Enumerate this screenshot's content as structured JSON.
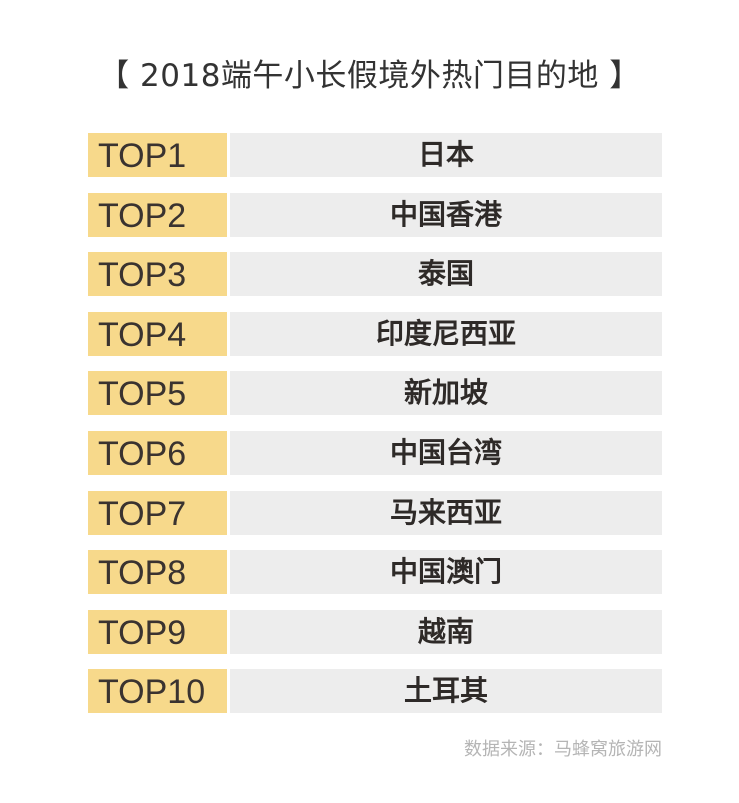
{
  "title": "【 2018端午小长假境外热门目的地 】",
  "rows": [
    {
      "rank": "TOP1",
      "destination": "日本"
    },
    {
      "rank": "TOP2",
      "destination": "中国香港"
    },
    {
      "rank": "TOP3",
      "destination": "泰国"
    },
    {
      "rank": "TOP4",
      "destination": "印度尼西亚"
    },
    {
      "rank": "TOP5",
      "destination": "新加坡"
    },
    {
      "rank": "TOP6",
      "destination": "中国台湾"
    },
    {
      "rank": "TOP7",
      "destination": "马来西亚"
    },
    {
      "rank": "TOP8",
      "destination": "中国澳门"
    },
    {
      "rank": "TOP9",
      "destination": "越南"
    },
    {
      "rank": "TOP10",
      "destination": "土耳其"
    }
  ],
  "source": "数据来源：马蜂窝旅游网",
  "colors": {
    "rank_bg": "#f7d98b",
    "destination_bg": "#ededed"
  }
}
